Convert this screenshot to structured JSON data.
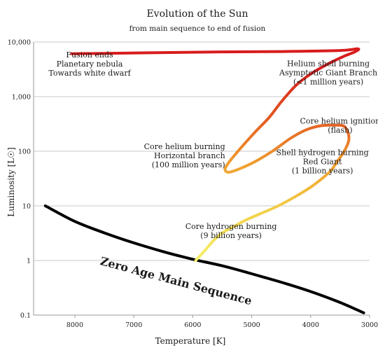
{
  "chart_data": {
    "type": "line",
    "title": "Evolution of the Sun",
    "subtitle": "from main sequence to end of fusion",
    "xlabel": "Temperature [K]",
    "ylabel": "Luminosity [L☉]",
    "x_scale": "linear",
    "x_reversed": true,
    "xlim": [
      8700,
      3000
    ],
    "x_ticks": [
      {
        "value": 8000,
        "label": "8000"
      },
      {
        "value": 7000,
        "label": "7000"
      },
      {
        "value": 6000,
        "label": "6000"
      },
      {
        "value": 5000,
        "label": "5000"
      },
      {
        "value": 4000,
        "label": "4000"
      },
      {
        "value": 3000,
        "label": "3000"
      }
    ],
    "y_scale": "log",
    "ylim": [
      0.1,
      10000
    ],
    "y_ticks": [
      {
        "value": 0.1,
        "label": "0.1"
      },
      {
        "value": 1,
        "label": "1"
      },
      {
        "value": 10,
        "label": "10"
      },
      {
        "value": 100,
        "label": "100"
      },
      {
        "value": 1000,
        "label": "1,000"
      },
      {
        "value": 10000,
        "label": "10,000"
      }
    ],
    "grid": "horizontal",
    "series": [
      {
        "name": "Zero Age Main Sequence",
        "color": "#000000",
        "points": [
          [
            8500,
            10
          ],
          [
            8000,
            5.2
          ],
          [
            7500,
            3.2
          ],
          [
            7000,
            2.1
          ],
          [
            6500,
            1.45
          ],
          [
            6000,
            1.05
          ],
          [
            5500,
            0.8
          ],
          [
            5000,
            0.57
          ],
          [
            4500,
            0.4
          ],
          [
            4000,
            0.27
          ],
          [
            3500,
            0.17
          ],
          [
            3100,
            0.11
          ]
        ]
      },
      {
        "name": "Evolution of the Sun",
        "gradient": [
          "#f6f06a",
          "#f2d24a",
          "#f0a030",
          "#e25a22",
          "#d81c1c"
        ],
        "points": [
          [
            5950,
            1.0
          ],
          [
            5800,
            1.5
          ],
          [
            5650,
            2.3
          ],
          [
            5500,
            3.2
          ],
          [
            5300,
            4.2
          ],
          [
            5100,
            5.5
          ],
          [
            4850,
            7.2
          ],
          [
            4550,
            10
          ],
          [
            4250,
            15
          ],
          [
            4000,
            22
          ],
          [
            3800,
            32
          ],
          [
            3650,
            45
          ],
          [
            3550,
            65
          ],
          [
            3430,
            100
          ],
          [
            3350,
            170
          ],
          [
            3420,
            280
          ],
          [
            3600,
            300
          ],
          [
            3850,
            290
          ],
          [
            4100,
            240
          ],
          [
            4350,
            170
          ],
          [
            4650,
            100
          ],
          [
            5000,
            60
          ],
          [
            5350,
            42
          ],
          [
            5450,
            45
          ],
          [
            5400,
            60
          ],
          [
            5200,
            110
          ],
          [
            4950,
            220
          ],
          [
            4700,
            420
          ],
          [
            4500,
            800
          ],
          [
            4250,
            1600
          ],
          [
            4000,
            2600
          ],
          [
            3700,
            4000
          ],
          [
            3450,
            5400
          ],
          [
            3250,
            6600
          ],
          [
            3200,
            7500
          ],
          [
            3500,
            7000
          ],
          [
            4500,
            6700
          ],
          [
            5500,
            6600
          ],
          [
            6500,
            6400
          ],
          [
            7500,
            6200
          ],
          [
            8050,
            6100
          ]
        ]
      }
    ],
    "annotations": [
      {
        "lines": [
          "Fusion ends",
          "Planetary nebula",
          "Towards white dwarf"
        ],
        "x": 7750,
        "y": 5200,
        "anchor": "middle"
      },
      {
        "lines": [
          "Helium shell burning",
          "Asymptotic Giant Branch",
          "(<1 million years)"
        ],
        "x": 3700,
        "y": 3600,
        "anchor": "middle"
      },
      {
        "lines": [
          "Core helium ignition",
          "(flash)"
        ],
        "x": 3500,
        "y": 320,
        "anchor": "middle"
      },
      {
        "lines": [
          "Core helium burning",
          "Horizontal branch",
          "(100 million years)"
        ],
        "x": 5450,
        "y": 110,
        "anchor": "end"
      },
      {
        "lines": [
          "Shell hydrogen burning",
          "Red Giant",
          "(1 billion years)"
        ],
        "x": 3800,
        "y": 85,
        "anchor": "middle"
      },
      {
        "lines": [
          "Core hydrogen burning",
          "(9 billion years)"
        ],
        "x": 5350,
        "y": 3.8,
        "anchor": "middle"
      }
    ],
    "series_label": {
      "text": "Zero Age Main Sequence",
      "x": 6300,
      "y": 0.36,
      "rotation_deg": 15
    }
  }
}
